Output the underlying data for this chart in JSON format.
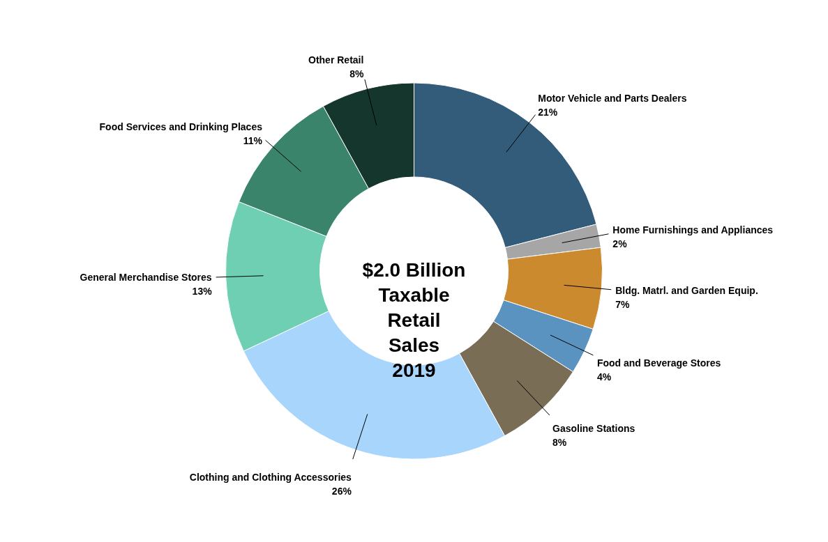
{
  "chart_data": {
    "type": "donut",
    "title": "$2.0 Billion\nTaxable\nRetail\nSales\n2019",
    "categories": [
      "Motor Vehicle and Parts Dealers",
      "Home Furnishings and Appliances",
      "Bldg. Matrl. and Garden Equip.",
      "Food and Beverage Stores",
      "Gasoline Stations",
      "Clothing and Clothing Accessories",
      "General Merchandise Stores",
      "Food Services and Drinking Places",
      "Other Retail"
    ],
    "values": [
      21,
      2,
      7,
      4,
      8,
      26,
      13,
      11,
      8
    ],
    "value_labels": [
      "21%",
      "2%",
      "7%",
      "4%",
      "8%",
      "26%",
      "13%",
      "11%",
      "8%"
    ],
    "colors": [
      "#335b7a",
      "#a6a6a6",
      "#cc8a2e",
      "#5b93c0",
      "#7a6d56",
      "#a8d5fc",
      "#6ecfb2",
      "#3a846c",
      "#14362c"
    ]
  }
}
